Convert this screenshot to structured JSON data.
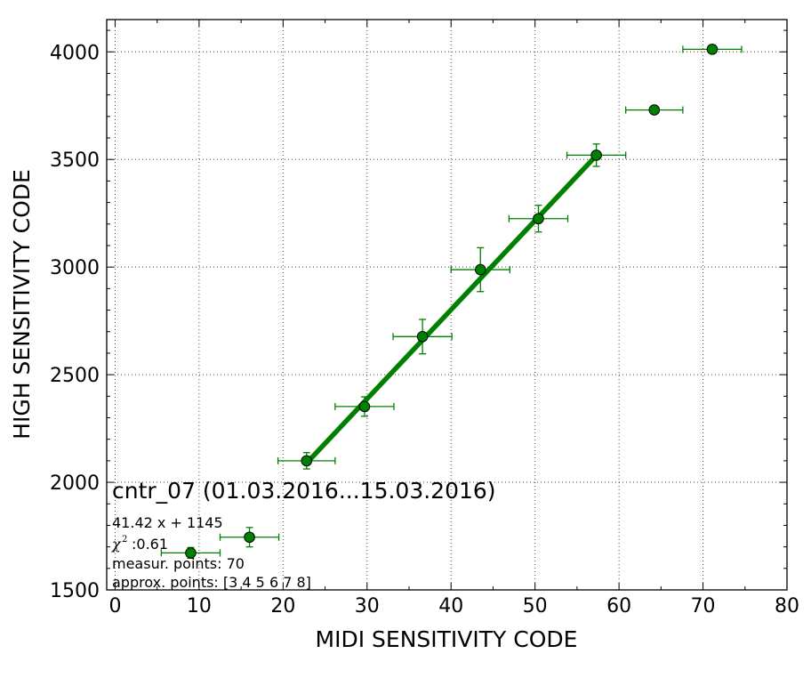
{
  "chart_data": {
    "type": "scatter",
    "title": "",
    "xlabel": "MIDI SENSITIVITY CODE",
    "ylabel": "HIGH SENSITIVITY CODE",
    "xlim": [
      -1,
      80
    ],
    "ylim": [
      1500,
      4150
    ],
    "x_ticks": [
      0,
      10,
      20,
      30,
      40,
      50,
      60,
      70,
      80
    ],
    "y_ticks": [
      1500,
      2000,
      2500,
      3000,
      3500,
      4000
    ],
    "grid": true,
    "marker_color": "#008000",
    "points": [
      {
        "x": 9.0,
        "y": 1672,
        "xerr": 3.5,
        "yerr": 25
      },
      {
        "x": 16.0,
        "y": 1745,
        "xerr": 3.5,
        "yerr": 45
      },
      {
        "x": 22.8,
        "y": 2100,
        "xerr": 3.4,
        "yerr": 38
      },
      {
        "x": 29.7,
        "y": 2352,
        "xerr": 3.5,
        "yerr": 45
      },
      {
        "x": 36.6,
        "y": 2677,
        "xerr": 3.5,
        "yerr": 80
      },
      {
        "x": 43.5,
        "y": 2988,
        "xerr": 3.5,
        "yerr": 102
      },
      {
        "x": 50.4,
        "y": 3225,
        "xerr": 3.5,
        "yerr": 62
      },
      {
        "x": 57.3,
        "y": 3520,
        "xerr": 3.5,
        "yerr": 52
      },
      {
        "x": 64.2,
        "y": 3730,
        "xerr": 3.4,
        "yerr": 0
      },
      {
        "x": 71.1,
        "y": 4012,
        "xerr": 3.5,
        "yerr": 0
      }
    ],
    "fit_line": {
      "slope": 41.42,
      "intercept": 1145,
      "x_from": 22.8,
      "x_to": 57.3
    },
    "annotations": {
      "title_text": "cntr_07 (01.03.2016...15.03.2016)",
      "equation": "41.42 x + 1145",
      "chi2_value": ":0.61",
      "measur_points": "measur. points: 70",
      "approx_points": "approx. points: [3 4 5 6 7 8]"
    }
  }
}
